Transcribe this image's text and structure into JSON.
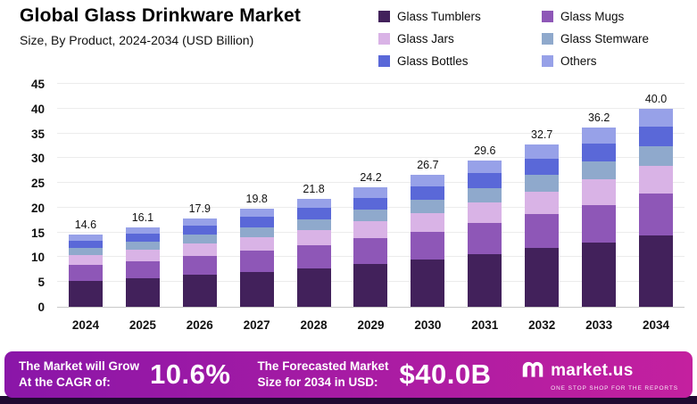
{
  "header": {
    "title": "Global Glass Drinkware Market",
    "subtitle": "Size, By Product, 2024-2034 (USD Billion)"
  },
  "legend": {
    "items": [
      {
        "label": "Glass Tumblers",
        "color": "#42215B"
      },
      {
        "label": "Glass Mugs",
        "color": "#8E57B7"
      },
      {
        "label": "Glass Jars",
        "color": "#D9B3E6"
      },
      {
        "label": "Glass Stemware",
        "color": "#8FA9CC"
      },
      {
        "label": "Glass Bottles",
        "color": "#5A68D8"
      },
      {
        "label": "Others",
        "color": "#97A1E8"
      }
    ]
  },
  "chart_data": {
    "type": "bar",
    "stacked": true,
    "title": "Global Glass Drinkware Market",
    "subtitle": "Size, By Product, 2024-2034 (USD Billion)",
    "categories": [
      "2024",
      "2025",
      "2026",
      "2027",
      "2028",
      "2029",
      "2030",
      "2031",
      "2032",
      "2033",
      "2034"
    ],
    "totals": [
      14.6,
      16.1,
      17.9,
      19.8,
      21.8,
      24.2,
      26.7,
      29.6,
      32.7,
      36.2,
      40.0
    ],
    "series": [
      {
        "name": "Glass Tumblers",
        "color": "#42215B",
        "values": [
          5.3,
          5.8,
          6.4,
          7.1,
          7.8,
          8.7,
          9.6,
          10.7,
          11.8,
          13.0,
          14.4
        ]
      },
      {
        "name": "Glass Mugs",
        "color": "#8E57B7",
        "values": [
          3.1,
          3.4,
          3.8,
          4.2,
          4.6,
          5.1,
          5.6,
          6.2,
          6.9,
          7.6,
          8.4
        ]
      },
      {
        "name": "Glass Jars",
        "color": "#D9B3E6",
        "values": [
          2.0,
          2.3,
          2.5,
          2.8,
          3.1,
          3.4,
          3.7,
          4.1,
          4.6,
          5.1,
          5.6
        ]
      },
      {
        "name": "Glass Stemware",
        "color": "#8FA9CC",
        "values": [
          1.5,
          1.6,
          1.8,
          2.0,
          2.2,
          2.4,
          2.7,
          3.0,
          3.3,
          3.6,
          4.0
        ]
      },
      {
        "name": "Glass Bottles",
        "color": "#5A68D8",
        "values": [
          1.5,
          1.6,
          1.8,
          2.0,
          2.2,
          2.4,
          2.7,
          3.0,
          3.3,
          3.6,
          4.0
        ]
      },
      {
        "name": "Others",
        "color": "#97A1E8",
        "values": [
          1.2,
          1.4,
          1.6,
          1.7,
          1.9,
          2.2,
          2.4,
          2.6,
          2.8,
          3.3,
          3.6
        ]
      }
    ],
    "xlabel": "",
    "ylabel": "",
    "ylim": [
      0,
      45
    ],
    "ytick_step": 5,
    "grid": true,
    "legend_position": "top-right"
  },
  "banner": {
    "cagr_label_line1": "The Market will Grow",
    "cagr_label_line2": "At the CAGR of:",
    "cagr_value": "10.6%",
    "forecast_label_line1": "The Forecasted Market",
    "forecast_label_line2": "Size for 2034 in USD:",
    "forecast_value": "$40.0B",
    "brand_name": "market.us",
    "brand_tagline": "One Stop Shop For The Reports",
    "gradient_start": "#8A16A8",
    "gradient_end": "#C4209F"
  }
}
